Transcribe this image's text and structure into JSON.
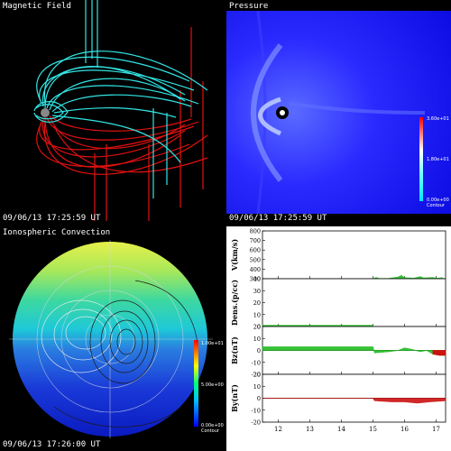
{
  "panels": {
    "magnetic": {
      "title": "Magnetic Field",
      "timestamp": "09/06/13 17:25:59 UT"
    },
    "pressure": {
      "title": "Pressure",
      "timestamp": "09/06/13 17:25:59 UT",
      "colorbar": {
        "max": "3.60e+01",
        "mid": "1.80e+01",
        "min": "0.00e+00",
        "label": "Contour"
      }
    },
    "ionosphere": {
      "title": "Ionospheric Convection",
      "timestamp": "09/06/13 17:26:00 UT",
      "colorbar": {
        "max": "1.00e+01",
        "mid": "5.00e+00",
        "min": "0.00e+00",
        "label": "Contour"
      }
    }
  },
  "colors": {
    "field_cyan": "#33e5e5",
    "field_red": "#e01010",
    "pressure_blue": "#1a1aff",
    "solar_wind_green": "#22bb22",
    "imf_red": "#cc1111"
  },
  "chart_data": {
    "type": "line",
    "x": {
      "ticks": [
        "12",
        "13",
        "14",
        "15",
        "16",
        "17"
      ],
      "range": [
        11.5,
        17.3
      ]
    },
    "series": [
      {
        "name": "V(km/s)",
        "ylabel": "V(km/s)",
        "ylim": [
          300,
          800
        ],
        "yticks": [
          "800",
          "700",
          "600",
          "500",
          "400",
          "300"
        ],
        "points": [
          [
            15.0,
            300
          ],
          [
            15.1,
            312
          ],
          [
            15.2,
            302
          ],
          [
            15.5,
            304
          ],
          [
            15.8,
            318
          ],
          [
            15.9,
            335
          ],
          [
            16.0,
            310
          ],
          [
            16.3,
            306
          ],
          [
            16.5,
            322
          ],
          [
            16.6,
            308
          ],
          [
            16.9,
            312
          ],
          [
            17.0,
            305
          ],
          [
            17.2,
            310
          ]
        ]
      },
      {
        "name": "Dens.(p/cc)",
        "ylabel": "Dens.(p/cc)",
        "ylim": [
          0,
          40
        ],
        "yticks": [
          "40",
          "30",
          "20",
          "10",
          "0"
        ],
        "points": [
          [
            11.5,
            1
          ],
          [
            15.0,
            1
          ]
        ]
      },
      {
        "name": "Bz(nT)",
        "ylabel": "Bz(nT)",
        "ylim": [
          -20,
          20
        ],
        "yticks": [
          "20",
          "10",
          "0",
          "-10",
          "-20"
        ],
        "points": [
          [
            11.5,
            3
          ],
          [
            15.0,
            3
          ],
          [
            15.05,
            -2
          ],
          [
            15.5,
            -1
          ],
          [
            15.8,
            0
          ],
          [
            16.0,
            2
          ],
          [
            16.2,
            1
          ],
          [
            16.5,
            -1
          ],
          [
            16.7,
            0
          ],
          [
            16.9,
            -3
          ],
          [
            17.1,
            -4
          ],
          [
            17.3,
            -4
          ]
        ]
      },
      {
        "name": "By(nT)",
        "ylabel": "By(nT)",
        "ylim": [
          -20,
          20
        ],
        "yticks": [
          "20",
          "10",
          "0",
          "-10",
          "-20"
        ],
        "points": [
          [
            11.5,
            0
          ],
          [
            15.0,
            0
          ],
          [
            15.05,
            -2
          ],
          [
            15.6,
            -3
          ],
          [
            16.0,
            -3
          ],
          [
            16.4,
            -4
          ],
          [
            16.8,
            -3
          ],
          [
            17.3,
            -2
          ]
        ]
      }
    ]
  }
}
